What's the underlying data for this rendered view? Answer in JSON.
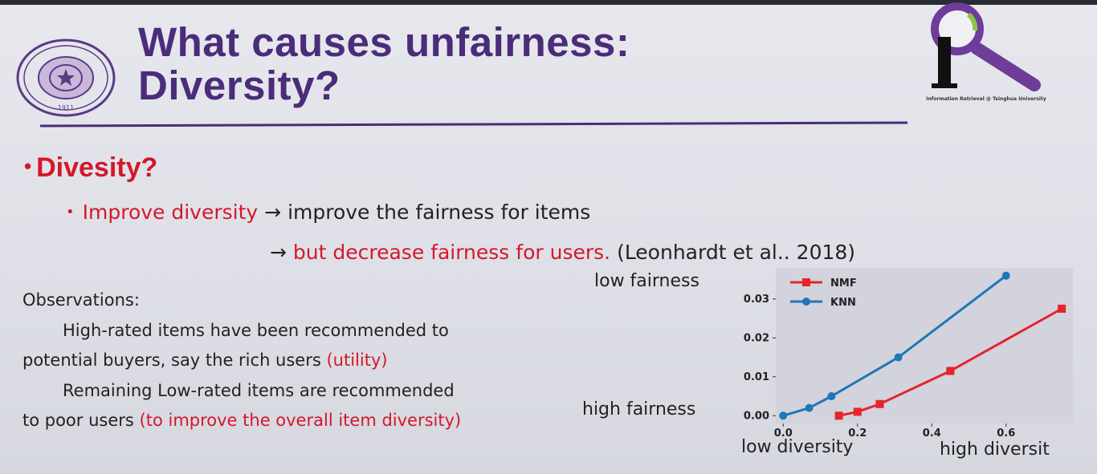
{
  "header": {
    "title_line1": "What causes unfairness:",
    "title_line2": "Diversity?",
    "logo_caption": "Information Retrieval @ Tsinghua University",
    "seal_year": "1911",
    "colors": {
      "title": "#4b2c7a",
      "accent": "#d4182a",
      "logo": "#6e3c99"
    }
  },
  "content": {
    "heading": "Divesity?",
    "bullet_red": "Improve diversity",
    "bullet_rest": "→ improve the fairness for items",
    "line3_arrow": "→",
    "line3_red": "but decrease fairness for users.",
    "line3_cite": "(Leonhardt et al.. 2018)"
  },
  "observations": {
    "heading": "Observations:",
    "line1": "High-rated items have been recommended to",
    "line2_black": "potential buyers, say the rich users",
    "line2_red": "(utility)",
    "line3": "Remaining Low-rated items are recommended",
    "line4_black": "to poor users",
    "line4_red": "(to improve the overall item diversity)"
  },
  "labels": {
    "low_fairness": "low fairness",
    "high_fairness": "high fairness",
    "low_diversity": "low diversity",
    "high_diversity": "high diversit"
  },
  "chart_data": {
    "type": "line",
    "xlim": [
      -0.02,
      0.78
    ],
    "ylim": [
      -0.002,
      0.038
    ],
    "xticks": [
      "0.0",
      "0.2",
      "0.4",
      "0.6"
    ],
    "xtick_values": [
      0.0,
      0.2,
      0.4,
      0.6
    ],
    "yticks": [
      "0.00",
      "0.01",
      "0.02",
      "0.03"
    ],
    "ytick_values": [
      0.0,
      0.01,
      0.02,
      0.03
    ],
    "legend_position": "top-left",
    "grid": false,
    "background": "#d2d3dd",
    "series": [
      {
        "name": "NMF",
        "color": "#e5242b",
        "marker": "square",
        "x": [
          0.15,
          0.2,
          0.26,
          0.45,
          0.75
        ],
        "y": [
          0.0,
          0.001,
          0.003,
          0.0115,
          0.0275
        ]
      },
      {
        "name": "KNN",
        "color": "#1f77b4",
        "marker": "circle",
        "x": [
          0.0,
          0.07,
          0.13,
          0.31,
          0.6
        ],
        "y": [
          0.0,
          0.002,
          0.005,
          0.015,
          0.036
        ]
      }
    ]
  }
}
